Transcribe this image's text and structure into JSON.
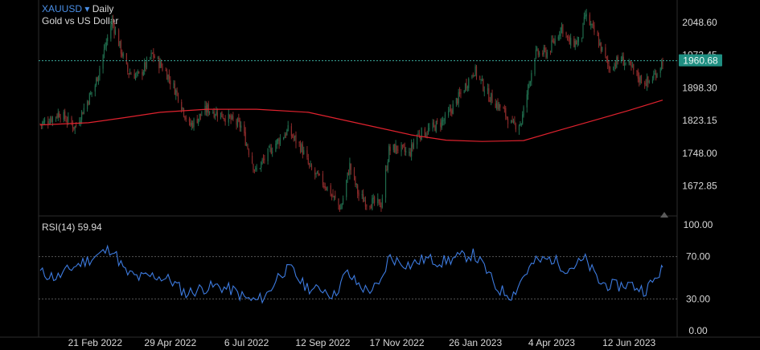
{
  "header": {
    "symbol": "XAUUSD",
    "dropdown_glyph": "▾",
    "interval": "Daily",
    "description": "Gold vs US Dollar"
  },
  "rsi_label": "RSI(14) 59.94",
  "colors": {
    "background": "#000000",
    "up_candle": "#1f6b4c",
    "down_candle": "#8a2a2a",
    "moving_average": "#e0222e",
    "rsi_line": "#3d7be0",
    "last_price_bg": "#1f8f82",
    "axis_text": "#d8d8d8"
  },
  "chart_data": [
    {
      "type": "candlestick",
      "title": "XAUUSD Daily",
      "subtitle": "Gold vs US Dollar",
      "y_ticks": [
        "2048.60",
        "1973.45",
        "1898.30",
        "1823.15",
        "1748.00",
        "1672.85"
      ],
      "ylim": [
        1614,
        2110
      ],
      "last_price": "1960.68",
      "x_ticks": [
        "21 Feb 2022",
        "29 Apr 2022",
        "6 Jul 2022",
        "12 Sep 2022",
        "17 Nov 2022",
        "26 Jan 2023",
        "4 Apr 2023",
        "12 Jun 2023"
      ],
      "price_path": [
        [
          "2022-01-04",
          1815
        ],
        [
          "2022-01-20",
          1840
        ],
        [
          "2022-02-03",
          1808
        ],
        [
          "2022-02-21",
          1905
        ],
        [
          "2022-03-08",
          2052
        ],
        [
          "2022-03-22",
          1935
        ],
        [
          "2022-04-01",
          1925
        ],
        [
          "2022-04-13",
          1975
        ],
        [
          "2022-04-25",
          1935
        ],
        [
          "2022-05-06",
          1880
        ],
        [
          "2022-05-16",
          1810
        ],
        [
          "2022-06-01",
          1850
        ],
        [
          "2022-06-15",
          1835
        ],
        [
          "2022-07-01",
          1810
        ],
        [
          "2022-07-14",
          1705
        ],
        [
          "2022-07-30",
          1765
        ],
        [
          "2022-08-12",
          1800
        ],
        [
          "2022-08-24",
          1760
        ],
        [
          "2022-09-01",
          1710
        ],
        [
          "2022-09-15",
          1672
        ],
        [
          "2022-09-28",
          1620
        ],
        [
          "2022-10-06",
          1720
        ],
        [
          "2022-10-14",
          1650
        ],
        [
          "2022-10-21",
          1636
        ],
        [
          "2022-11-03",
          1630
        ],
        [
          "2022-11-10",
          1755
        ],
        [
          "2022-11-18",
          1760
        ],
        [
          "2022-11-28",
          1745
        ],
        [
          "2022-12-05",
          1790
        ],
        [
          "2022-12-15",
          1800
        ],
        [
          "2022-12-30",
          1825
        ],
        [
          "2023-01-12",
          1880
        ],
        [
          "2023-01-25",
          1940
        ],
        [
          "2023-02-07",
          1880
        ],
        [
          "2023-02-20",
          1845
        ],
        [
          "2023-02-28",
          1810
        ],
        [
          "2023-03-08",
          1820
        ],
        [
          "2023-03-20",
          1975
        ],
        [
          "2023-04-01",
          1980
        ],
        [
          "2023-04-13",
          2040
        ],
        [
          "2023-04-20",
          2000
        ],
        [
          "2023-04-30",
          2005
        ],
        [
          "2023-05-04",
          2065
        ],
        [
          "2023-05-15",
          2010
        ],
        [
          "2023-05-25",
          1945
        ],
        [
          "2023-06-05",
          1965
        ],
        [
          "2023-06-15",
          1940
        ],
        [
          "2023-06-21",
          1920
        ],
        [
          "2023-06-29",
          1910
        ],
        [
          "2023-07-05",
          1928
        ],
        [
          "2023-07-12",
          1960
        ]
      ],
      "series": [
        {
          "name": "",
          "kind": "moving_average",
          "points": [
            [
              "2022-01-03",
              1813
            ],
            [
              "2022-02-15",
              1818
            ],
            [
              "2022-03-20",
              1830
            ],
            [
              "2022-04-20",
              1842
            ],
            [
              "2022-06-01",
              1849
            ],
            [
              "2022-07-15",
              1849
            ],
            [
              "2022-08-30",
              1842
            ],
            [
              "2022-10-15",
              1816
            ],
            [
              "2022-11-30",
              1790
            ],
            [
              "2022-12-31",
              1778
            ],
            [
              "2023-02-01",
              1775
            ],
            [
              "2023-03-10",
              1777
            ],
            [
              "2023-04-10",
              1800
            ],
            [
              "2023-05-10",
              1822
            ],
            [
              "2023-06-10",
              1845
            ],
            [
              "2023-07-12",
              1870
            ]
          ]
        }
      ]
    },
    {
      "type": "line",
      "title": "RSI(14)",
      "y_ticks": [
        "100.00",
        "70.00",
        "30.00",
        "0.00"
      ],
      "ylim": [
        0,
        100
      ],
      "reference_lines": [
        70,
        30
      ],
      "last_value": 59.94,
      "series": [
        {
          "name": "",
          "points": [
            [
              "2022-01-03",
              55
            ],
            [
              "2022-01-18",
              50
            ],
            [
              "2022-02-01",
              60
            ],
            [
              "2022-02-21",
              70
            ],
            [
              "2022-03-08",
              78
            ],
            [
              "2022-03-20",
              55
            ],
            [
              "2022-04-01",
              50
            ],
            [
              "2022-04-15",
              52
            ],
            [
              "2022-04-29",
              48
            ],
            [
              "2022-05-13",
              35
            ],
            [
              "2022-05-27",
              40
            ],
            [
              "2022-06-10",
              42
            ],
            [
              "2022-06-24",
              38
            ],
            [
              "2022-07-06",
              30
            ],
            [
              "2022-07-15",
              28
            ],
            [
              "2022-07-25",
              35
            ],
            [
              "2022-08-05",
              55
            ],
            [
              "2022-08-15",
              58
            ],
            [
              "2022-08-25",
              44
            ],
            [
              "2022-09-05",
              38
            ],
            [
              "2022-09-12",
              40
            ],
            [
              "2022-09-22",
              33
            ],
            [
              "2022-10-03",
              55
            ],
            [
              "2022-10-12",
              45
            ],
            [
              "2022-10-21",
              38
            ],
            [
              "2022-11-02",
              42
            ],
            [
              "2022-11-10",
              70
            ],
            [
              "2022-11-17",
              66
            ],
            [
              "2022-11-29",
              62
            ],
            [
              "2022-12-12",
              68
            ],
            [
              "2022-12-27",
              65
            ],
            [
              "2023-01-10",
              69
            ],
            [
              "2023-01-24",
              72
            ],
            [
              "2023-02-03",
              60
            ],
            [
              "2023-02-14",
              40
            ],
            [
              "2023-02-28",
              33
            ],
            [
              "2023-03-10",
              52
            ],
            [
              "2023-03-20",
              65
            ],
            [
              "2023-04-04",
              68
            ],
            [
              "2023-04-18",
              58
            ],
            [
              "2023-05-04",
              67
            ],
            [
              "2023-05-17",
              45
            ],
            [
              "2023-05-31",
              42
            ],
            [
              "2023-06-12",
              44
            ],
            [
              "2023-06-26",
              38
            ],
            [
              "2023-07-05",
              48
            ],
            [
              "2023-07-12",
              59.94
            ]
          ]
        }
      ]
    }
  ]
}
